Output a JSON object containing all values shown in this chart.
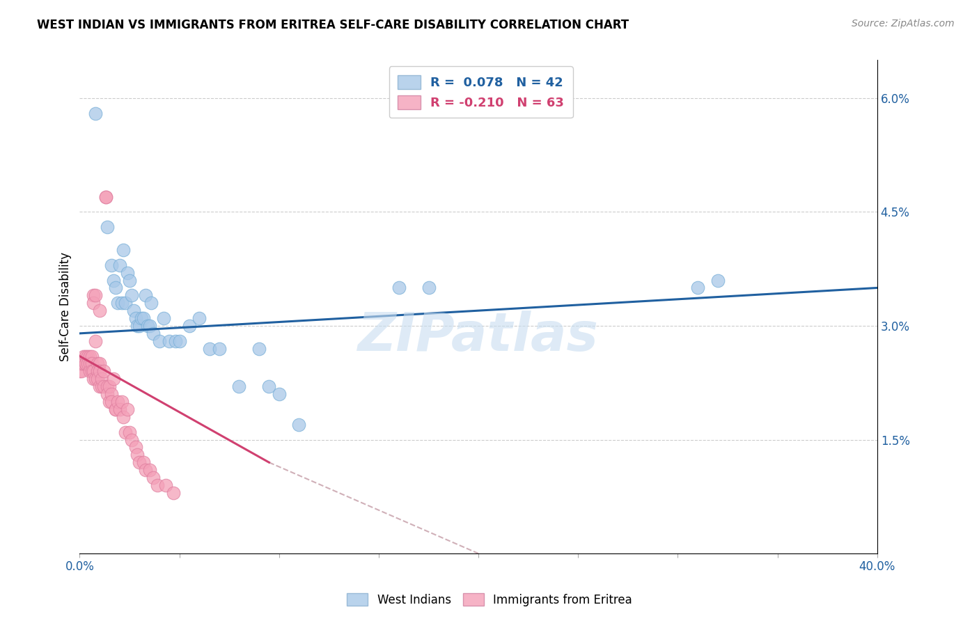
{
  "title": "WEST INDIAN VS IMMIGRANTS FROM ERITREA SELF-CARE DISABILITY CORRELATION CHART",
  "source": "Source: ZipAtlas.com",
  "ylabel": "Self-Care Disability",
  "xlim": [
    0,
    0.4
  ],
  "ylim": [
    0,
    0.065
  ],
  "xticks": [
    0.0,
    0.05,
    0.1,
    0.15,
    0.2,
    0.25,
    0.3,
    0.35,
    0.4
  ],
  "yticks": [
    0.0,
    0.015,
    0.03,
    0.045,
    0.06
  ],
  "yticklabels": [
    "",
    "1.5%",
    "3.0%",
    "4.5%",
    "6.0%"
  ],
  "R_blue": 0.078,
  "N_blue": 42,
  "R_pink": -0.21,
  "N_pink": 63,
  "blue_color": "#a8c8e8",
  "pink_color": "#f4a0b8",
  "blue_line_color": "#2060a0",
  "pink_line_color": "#d04070",
  "legend_label_blue": "West Indians",
  "legend_label_pink": "Immigrants from Eritrea",
  "watermark": "ZIPatlas",
  "blue_x": [
    0.008,
    0.014,
    0.016,
    0.017,
    0.018,
    0.019,
    0.02,
    0.021,
    0.022,
    0.023,
    0.024,
    0.025,
    0.026,
    0.027,
    0.028,
    0.029,
    0.03,
    0.031,
    0.032,
    0.033,
    0.034,
    0.035,
    0.036,
    0.037,
    0.04,
    0.042,
    0.045,
    0.048,
    0.05,
    0.055,
    0.06,
    0.065,
    0.07,
    0.08,
    0.09,
    0.095,
    0.1,
    0.11,
    0.16,
    0.175,
    0.31,
    0.32
  ],
  "blue_y": [
    0.058,
    0.043,
    0.038,
    0.036,
    0.035,
    0.033,
    0.038,
    0.033,
    0.04,
    0.033,
    0.037,
    0.036,
    0.034,
    0.032,
    0.031,
    0.03,
    0.03,
    0.031,
    0.031,
    0.034,
    0.03,
    0.03,
    0.033,
    0.029,
    0.028,
    0.031,
    0.028,
    0.028,
    0.028,
    0.03,
    0.031,
    0.027,
    0.027,
    0.022,
    0.027,
    0.022,
    0.021,
    0.017,
    0.035,
    0.035,
    0.035,
    0.036
  ],
  "pink_x": [
    0.0,
    0.001,
    0.001,
    0.002,
    0.002,
    0.003,
    0.003,
    0.003,
    0.004,
    0.004,
    0.005,
    0.005,
    0.005,
    0.006,
    0.006,
    0.006,
    0.007,
    0.007,
    0.007,
    0.007,
    0.008,
    0.008,
    0.008,
    0.009,
    0.009,
    0.009,
    0.01,
    0.01,
    0.01,
    0.01,
    0.011,
    0.011,
    0.012,
    0.012,
    0.013,
    0.013,
    0.014,
    0.014,
    0.015,
    0.015,
    0.016,
    0.016,
    0.017,
    0.018,
    0.018,
    0.019,
    0.02,
    0.021,
    0.022,
    0.023,
    0.024,
    0.025,
    0.026,
    0.028,
    0.029,
    0.03,
    0.032,
    0.033,
    0.035,
    0.037,
    0.039,
    0.043,
    0.047
  ],
  "pink_y": [
    0.024,
    0.024,
    0.025,
    0.026,
    0.025,
    0.025,
    0.026,
    0.025,
    0.026,
    0.025,
    0.026,
    0.025,
    0.024,
    0.026,
    0.025,
    0.024,
    0.034,
    0.033,
    0.024,
    0.023,
    0.034,
    0.028,
    0.023,
    0.025,
    0.024,
    0.023,
    0.032,
    0.025,
    0.024,
    0.022,
    0.022,
    0.023,
    0.024,
    0.022,
    0.047,
    0.047,
    0.022,
    0.021,
    0.022,
    0.02,
    0.021,
    0.02,
    0.023,
    0.019,
    0.019,
    0.02,
    0.019,
    0.02,
    0.018,
    0.016,
    0.019,
    0.016,
    0.015,
    0.014,
    0.013,
    0.012,
    0.012,
    0.011,
    0.011,
    0.01,
    0.009,
    0.009,
    0.008
  ],
  "blue_trend_x0": 0.0,
  "blue_trend_y0": 0.029,
  "blue_trend_x1": 0.4,
  "blue_trend_y1": 0.035,
  "pink_trend_x0": 0.0,
  "pink_trend_y0": 0.026,
  "pink_trend_x1_solid": 0.095,
  "pink_trend_y1_solid": 0.012,
  "pink_trend_x1_dashed": 0.2,
  "pink_trend_y1_dashed": 0.0
}
